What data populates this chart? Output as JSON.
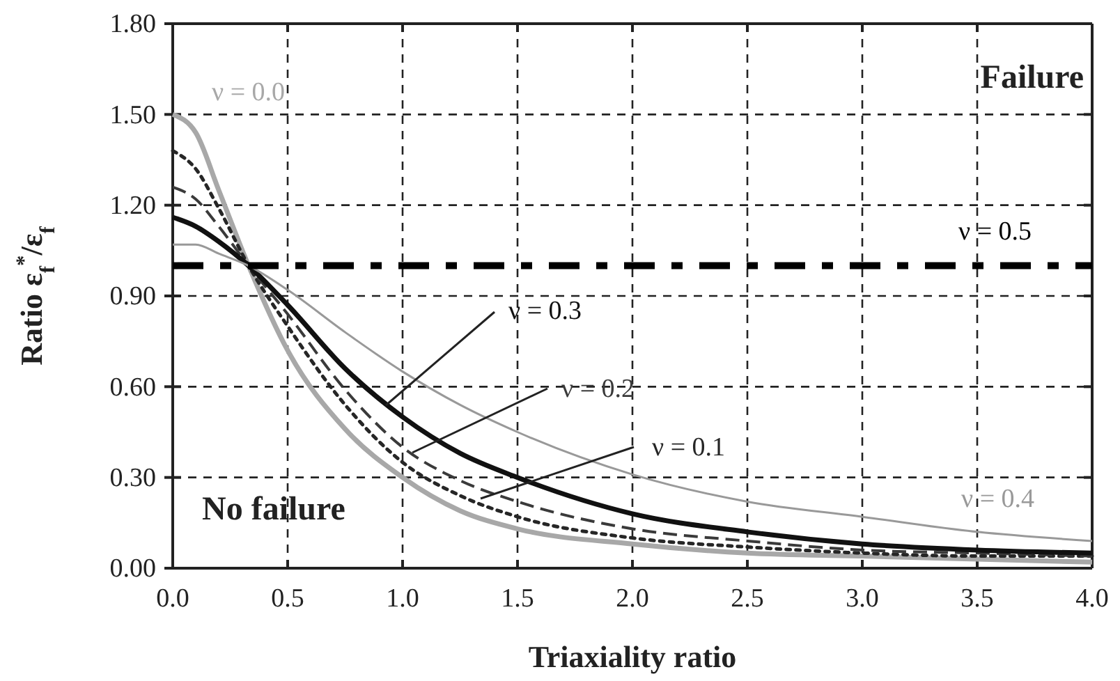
{
  "chart_data": {
    "type": "line",
    "xlabel": "Triaxiality ratio",
    "ylabel": "Ratio ε$_{f}$$^{*}$/ε$_{f}$",
    "xlim": [
      0,
      4
    ],
    "ylim": [
      0,
      1.8
    ],
    "xticks": [
      {
        "value": 0,
        "label": "0.0"
      },
      0.5,
      {
        "value": 1,
        "label": "1.0"
      },
      1.5,
      {
        "value": 2,
        "label": "2.0"
      },
      2.5,
      {
        "value": 3,
        "label": "3.0"
      },
      3.5,
      {
        "value": 4,
        "label": "4.0"
      }
    ],
    "yticks": [
      {
        "value": 0,
        "label": "0.00"
      },
      {
        "value": 0.3,
        "label": "0.30"
      },
      {
        "value": 0.6,
        "label": "0.60"
      },
      {
        "value": 0.9,
        "label": "0.90"
      },
      {
        "value": 1.2,
        "label": "1.20"
      },
      {
        "value": 1.5,
        "label": "1.50"
      },
      {
        "value": 1.8,
        "label": "1.80"
      }
    ],
    "grid": true,
    "marker": "none",
    "series": [
      {
        "name": "ν = 0.0",
        "color": "#a8a8a8",
        "line_style": "solid",
        "x": [
          0,
          0.1,
          0.2,
          0.33,
          0.5,
          0.75,
          1.0,
          1.25,
          1.5,
          2.0,
          2.5,
          3.0,
          3.5,
          4.0
        ],
        "values": [
          1.5,
          1.44,
          1.25,
          1.0,
          0.72,
          0.46,
          0.3,
          0.19,
          0.13,
          0.08,
          0.05,
          0.04,
          0.03,
          0.02
        ]
      },
      {
        "name": "ν = 0.1",
        "color": "#262626",
        "line_style": "dotted",
        "x": [
          0,
          0.1,
          0.2,
          0.33,
          0.5,
          0.75,
          1.0,
          1.25,
          1.5,
          2.0,
          2.5,
          3.0,
          3.5,
          4.0
        ],
        "values": [
          1.38,
          1.32,
          1.19,
          1.0,
          0.8,
          0.54,
          0.35,
          0.24,
          0.17,
          0.1,
          0.07,
          0.05,
          0.04,
          0.04
        ]
      },
      {
        "name": "ν = 0.2",
        "color": "#3a3a3a",
        "line_style": "dashed",
        "x": [
          0,
          0.1,
          0.2,
          0.33,
          0.5,
          0.75,
          1.0,
          1.25,
          1.5,
          2.0,
          2.5,
          3.0,
          3.5,
          4.0
        ],
        "values": [
          1.26,
          1.22,
          1.13,
          1.0,
          0.84,
          0.59,
          0.4,
          0.29,
          0.22,
          0.13,
          0.09,
          0.06,
          0.05,
          0.04
        ]
      },
      {
        "name": "ν = 0.3",
        "color": "#111111",
        "line_style": "solid",
        "x": [
          0,
          0.1,
          0.2,
          0.33,
          0.5,
          0.75,
          1.0,
          1.25,
          1.5,
          2.0,
          2.5,
          3.0,
          3.5,
          4.0
        ],
        "values": [
          1.16,
          1.13,
          1.08,
          1.0,
          0.87,
          0.66,
          0.5,
          0.38,
          0.3,
          0.18,
          0.12,
          0.08,
          0.06,
          0.05
        ]
      },
      {
        "name": "ν = 0.4",
        "color": "#999999",
        "line_style": "solid",
        "x": [
          0,
          0.1,
          0.2,
          0.33,
          0.5,
          0.75,
          1.0,
          1.25,
          1.5,
          2.0,
          2.5,
          3.0,
          3.5,
          4.0
        ],
        "values": [
          1.07,
          1.07,
          1.04,
          1.0,
          0.92,
          0.78,
          0.65,
          0.54,
          0.45,
          0.31,
          0.22,
          0.17,
          0.12,
          0.09
        ]
      },
      {
        "name": "ν = 0.5",
        "color": "#000000",
        "line_style": "dashdot",
        "x": [
          0,
          4.0
        ],
        "values": [
          1.0,
          1.0
        ]
      }
    ],
    "annotations": [
      "Failure",
      "No failure"
    ]
  }
}
